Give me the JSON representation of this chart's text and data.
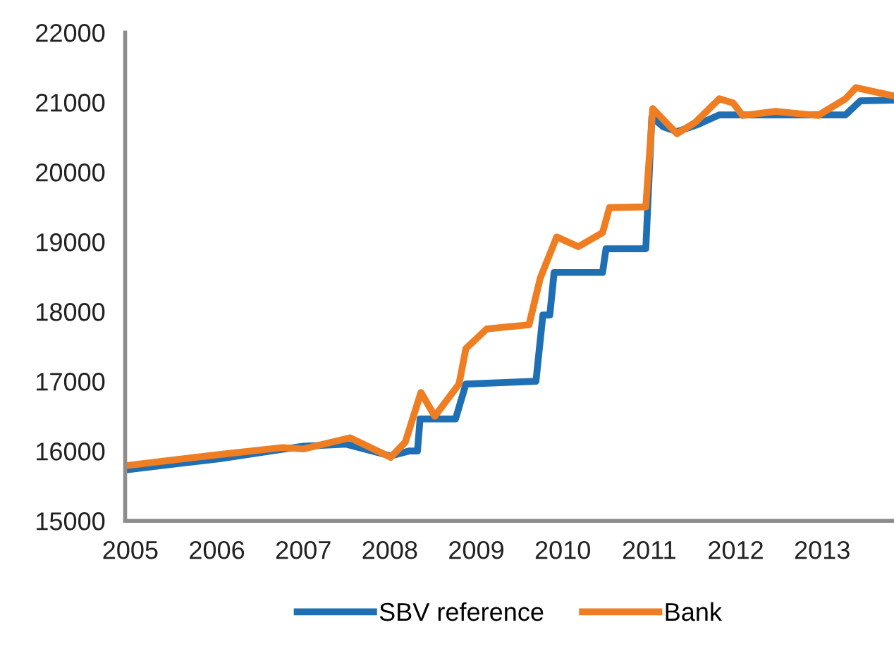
{
  "chart_data": {
    "type": "line",
    "xlim": [
      2004.94,
      2013.83
    ],
    "xticks": [
      2005,
      2006,
      2007,
      2008,
      2009,
      2010,
      2011,
      2012,
      2013
    ],
    "ylim": [
      15000,
      22000
    ],
    "yticks": [
      15000,
      16000,
      17000,
      18000,
      19000,
      20000,
      21000,
      22000
    ],
    "grid": false,
    "legend": "bottom",
    "marker": "none",
    "line_style": "solid",
    "series": [
      {
        "name": "SBV reference",
        "color": "#1f6fb5",
        "x": [
          2004.94,
          2006.03,
          2007.0,
          2007.49,
          2008.01,
          2008.22,
          2008.32,
          2008.35,
          2008.76,
          2008.88,
          2009.69,
          2009.77,
          2009.85,
          2009.9,
          2010.46,
          2010.5,
          2010.96,
          2011.03,
          2011.16,
          2011.32,
          2011.56,
          2011.81,
          2013.27,
          2013.44,
          2013.83
        ],
        "values": [
          15730,
          15890,
          16070,
          16100,
          15930,
          16000,
          16000,
          16460,
          16460,
          16960,
          17000,
          17950,
          17950,
          18560,
          18560,
          18900,
          18900,
          20790,
          20650,
          20580,
          20680,
          20820,
          20820,
          21020,
          21030
        ]
      },
      {
        "name": "Bank",
        "color": "#ef7d22",
        "x": [
          2004.94,
          2006.03,
          2006.76,
          2007.0,
          2007.54,
          2008.01,
          2008.18,
          2008.36,
          2008.52,
          2008.8,
          2008.88,
          2009.12,
          2009.61,
          2009.74,
          2009.93,
          2010.18,
          2010.46,
          2010.54,
          2010.96,
          2011.04,
          2011.32,
          2011.53,
          2011.81,
          2011.97,
          2012.08,
          2012.46,
          2012.95,
          2013.27,
          2013.39,
          2013.83
        ],
        "values": [
          15790,
          15950,
          16050,
          16030,
          16190,
          15910,
          16130,
          16840,
          16500,
          16960,
          17470,
          17750,
          17810,
          18480,
          19070,
          18930,
          19130,
          19490,
          19500,
          20910,
          20550,
          20710,
          21050,
          20990,
          20810,
          20870,
          20810,
          21050,
          21210,
          21090
        ]
      }
    ]
  }
}
